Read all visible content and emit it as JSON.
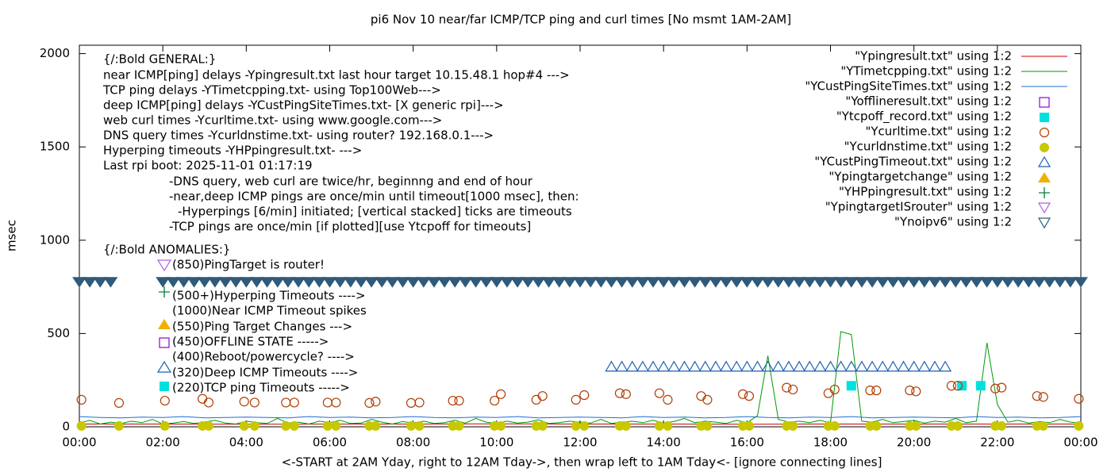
{
  "chart_data": {
    "type": "scatter",
    "title": "pi6 Nov 10  near/far ICMP/TCP ping and curl times [No msmt 1AM-2AM]",
    "x_label": "<-START at 2AM Yday, right to 12AM Tday->, then wrap left to 1AM Tday<- [ignore connecting lines]",
    "y_label": "msec",
    "xlim": [
      0,
      24
    ],
    "ylim": [
      0,
      2045
    ],
    "xticks": [
      {
        "value": 0,
        "label": "00:00"
      },
      {
        "value": 2,
        "label": "02:00"
      },
      {
        "value": 4,
        "label": "04:00"
      },
      {
        "value": 6,
        "label": "06:00"
      },
      {
        "value": 8,
        "label": "08:00"
      },
      {
        "value": 10,
        "label": "10:00"
      },
      {
        "value": 12,
        "label": "12:00"
      },
      {
        "value": 14,
        "label": "14:00"
      },
      {
        "value": 16,
        "label": "16:00"
      },
      {
        "value": 18,
        "label": "18:00"
      },
      {
        "value": 20,
        "label": "20:00"
      },
      {
        "value": 22,
        "label": "22:00"
      },
      {
        "value": 24,
        "label": "00:00"
      }
    ],
    "yticks": [
      0,
      500,
      1000,
      1500,
      2000
    ],
    "grid": false,
    "legend": "top-right",
    "annotations": [
      "{/:Bold GENERAL:}",
      "near ICMP[ping] delays -Ypingresult.txt last hour target 10.15.48.1 hop#4 --->",
      "TCP ping delays -YTimetcpping.txt- using Top100Web--->",
      "deep ICMP[ping] delays -YCustPingSiteTimes.txt- [X generic rpi]--->",
      "web curl times -Ycurltime.txt- using www.google.com--->",
      "DNS query times -Ycurldnstime.txt- using router? 192.168.0.1--->",
      "Hyperping timeouts -YHPpingresult.txt- --->",
      "Last rpi boot: 2025-11-01 01:17:19",
      "-DNS query, web curl are twice/hr, beginnng and end of hour",
      "-near,deep ICMP pings are once/min until timeout[1000 msec], then:",
      "-Hyperpings [6/min] initiated; [vertical stacked] ticks are timeouts",
      "-TCP pings are once/min [if plotted][use Ytcpoff for timeouts]",
      "{/:Bold ANOMALIES:}",
      "(850)PingTarget is router!",
      "(500+)Hyperping Timeouts ---->",
      "(1000)Near ICMP Timeout spikes",
      "(550)Ping Target Changes --->",
      "(450)OFFLINE STATE ----->",
      "(400)Reboot/powercycle? ---->",
      "(320)Deep ICMP Timeouts ---->",
      "(220)TCP ping Timeouts ----->"
    ],
    "series": [
      {
        "name": "\"Ypingresult.txt\" using 1:2",
        "color": "#cc0000",
        "marker": "line",
        "x": [
          0,
          2,
          4,
          6,
          8,
          10,
          12,
          14,
          16,
          18,
          20,
          22,
          24
        ],
        "values": [
          15,
          15,
          14,
          15,
          15,
          16,
          15,
          15,
          14,
          15,
          15,
          15,
          15
        ]
      },
      {
        "name": "\"YTimetcpping.txt\" using 1:2",
        "color": "#009900",
        "marker": "line",
        "x": [
          0,
          0.25,
          0.5,
          0.75,
          1,
          1.25,
          1.5,
          1.75,
          2,
          2.25,
          2.5,
          2.75,
          3,
          3.25,
          3.5,
          3.75,
          4,
          4.25,
          4.5,
          4.75,
          5,
          5.25,
          5.5,
          5.75,
          6,
          6.25,
          6.5,
          6.75,
          7,
          7.25,
          7.5,
          7.75,
          8,
          8.25,
          8.5,
          8.75,
          9,
          9.25,
          9.5,
          9.75,
          10,
          10.25,
          10.5,
          10.75,
          11,
          11.25,
          11.5,
          11.75,
          12,
          12.25,
          12.5,
          12.75,
          13,
          13.25,
          13.5,
          13.75,
          14,
          14.25,
          14.5,
          14.75,
          15,
          15.25,
          15.5,
          15.75,
          16,
          16.25,
          16.5,
          16.75,
          17,
          17.25,
          17.5,
          17.75,
          18,
          18.25,
          18.5,
          18.75,
          19,
          19.25,
          19.5,
          19.75,
          20,
          20.25,
          20.5,
          20.75,
          21,
          21.25,
          21.5,
          21.75,
          22,
          22.25,
          22.5,
          22.75,
          23,
          23.25,
          23.5,
          23.75,
          24
        ],
        "values": [
          20,
          35,
          15,
          25,
          18,
          30,
          22,
          40,
          15,
          20,
          28,
          18,
          25,
          35,
          20,
          15,
          30,
          22,
          18,
          45,
          20,
          25,
          15,
          30,
          22,
          35,
          18,
          20,
          40,
          25,
          15,
          28,
          20,
          30,
          18,
          22,
          35,
          20,
          45,
          25,
          18,
          30,
          20,
          25,
          38,
          18,
          22,
          30,
          25,
          20,
          40,
          18,
          25,
          30,
          22,
          35,
          20,
          28,
          45,
          22,
          30,
          25,
          18,
          35,
          22,
          60,
          380,
          40,
          25,
          30,
          22,
          35,
          20,
          510,
          495,
          30,
          25,
          40,
          22,
          28,
          35,
          20,
          30,
          25,
          45,
          22,
          30,
          450,
          120,
          25,
          35,
          20,
          28,
          22,
          40,
          25,
          20
        ]
      },
      {
        "name": "\"YCustPingSiteTimes.txt\" using 1:2",
        "color": "#1f6fd0",
        "marker": "line",
        "x": [
          0,
          0.5,
          1,
          1.5,
          2,
          2.5,
          3,
          3.5,
          4,
          4.5,
          5,
          5.5,
          6,
          6.5,
          7,
          7.5,
          8,
          8.5,
          9,
          9.5,
          10,
          10.5,
          11,
          11.5,
          12,
          12.5,
          13,
          13.5,
          14,
          14.5,
          15,
          15.5,
          16,
          16.5,
          17,
          17.5,
          18,
          18.5,
          19,
          19.5,
          20,
          20.5,
          21,
          21.5,
          22,
          22.5,
          23,
          23.5,
          24
        ],
        "values": [
          55,
          50,
          48,
          52,
          50,
          55,
          48,
          50,
          52,
          50,
          48,
          55,
          50,
          52,
          48,
          50,
          55,
          50,
          48,
          52,
          50,
          55,
          48,
          50,
          52,
          50,
          48,
          55,
          50,
          52,
          48,
          50,
          55,
          50,
          48,
          52,
          50,
          55,
          48,
          50,
          52,
          50,
          48,
          55,
          50,
          52,
          48,
          50,
          55
        ]
      },
      {
        "name": "\"Yofflineresult.txt\" using 1:2",
        "color": "#9400d3",
        "marker": "square",
        "x": [],
        "values": []
      },
      {
        "name": "\"Ytcpoff_record.txt\" using 1:2",
        "color": "#00e0e0",
        "marker": "filled-square",
        "x": [
          18.5,
          21.15,
          21.6
        ],
        "values": [
          220,
          220,
          220
        ]
      },
      {
        "name": "\"Ycurltime.txt\" using 1:2",
        "color": "#b03c00",
        "marker": "circle",
        "x": [
          0.05,
          0.95,
          2.05,
          2.95,
          3.1,
          3.95,
          4.2,
          4.95,
          5.15,
          5.95,
          6.15,
          6.95,
          7.1,
          7.95,
          8.15,
          8.95,
          9.1,
          9.95,
          10.1,
          10.95,
          11.1,
          11.9,
          12.1,
          12.95,
          13.1,
          13.9,
          14.1,
          14.9,
          15.05,
          15.9,
          16.05,
          16.95,
          17.1,
          17.95,
          18.1,
          18.95,
          19.1,
          19.9,
          20.05,
          20.9,
          21.05,
          21.95,
          22.1,
          22.95,
          23.1,
          23.95
        ],
        "values": [
          145,
          128,
          140,
          150,
          130,
          135,
          130,
          130,
          130,
          130,
          130,
          128,
          135,
          128,
          130,
          140,
          140,
          140,
          175,
          145,
          165,
          145,
          170,
          180,
          175,
          180,
          145,
          165,
          145,
          175,
          165,
          210,
          200,
          180,
          200,
          195,
          195,
          195,
          190,
          220,
          220,
          205,
          210,
          165,
          160,
          150
        ]
      },
      {
        "name": "\"Ycurldnstime.txt\" using 1:2",
        "color": "#c8c800",
        "marker": "dot",
        "x": [
          0.05,
          0.95,
          2.05,
          2.95,
          3.1,
          3.95,
          4.2,
          4.95,
          5.15,
          5.95,
          6.15,
          6.95,
          7.1,
          7.95,
          8.15,
          8.95,
          9.1,
          9.95,
          10.1,
          10.95,
          11.1,
          11.9,
          12.1,
          12.95,
          13.1,
          13.9,
          14.1,
          14.9,
          15.05,
          15.9,
          16.05,
          16.95,
          17.1,
          17.95,
          18.1,
          18.95,
          19.1,
          19.9,
          20.05,
          20.9,
          21.05,
          21.95,
          22.1,
          22.95,
          23.1,
          23.95
        ],
        "values": [
          5,
          5,
          5,
          5,
          5,
          5,
          5,
          5,
          5,
          5,
          5,
          5,
          5,
          5,
          5,
          5,
          5,
          5,
          5,
          5,
          5,
          5,
          5,
          5,
          5,
          5,
          5,
          5,
          5,
          5,
          5,
          5,
          5,
          5,
          5,
          5,
          5,
          5,
          5,
          5,
          5,
          5,
          5,
          5,
          5,
          5
        ]
      },
      {
        "name": "\"YCustPingTimeout.txt\" using 1:2",
        "color": "#1f5fb0",
        "marker": "triangle",
        "x": [
          12.75,
          13,
          13.25,
          13.5,
          13.75,
          14,
          14.25,
          14.5,
          14.75,
          15,
          15.25,
          15.5,
          15.75,
          16,
          16.25,
          16.5,
          16.75,
          17,
          17.25,
          17.5,
          17.75,
          18,
          18.25,
          18.5,
          18.75,
          19,
          19.25,
          19.5,
          19.75,
          20,
          20.25,
          20.5,
          20.75
        ],
        "values": [
          320,
          320,
          320,
          320,
          320,
          320,
          320,
          320,
          320,
          320,
          320,
          320,
          320,
          320,
          320,
          320,
          320,
          320,
          320,
          320,
          320,
          320,
          320,
          320,
          320,
          320,
          320,
          320,
          320,
          320,
          320,
          320,
          320
        ]
      },
      {
        "name": "\"Ypingtargetchange\" using 1:2",
        "color": "#f0b000",
        "marker": "filled-triangle",
        "x": [],
        "values": []
      },
      {
        "name": "\"YHPpingresult.txt\" using 1:2",
        "color": "#008040",
        "marker": "plus",
        "x": [],
        "values": []
      },
      {
        "name": "\"YpingtargetISrouter\" using 1:2",
        "color": "#b060e0",
        "marker": "down-triangle",
        "x": [],
        "values": []
      },
      {
        "name": "\"Ynoipv6\" using 1:2",
        "color": "#2f5a7a",
        "marker": "down-triangle",
        "x": [
          0,
          0.25,
          0.5,
          0.75,
          2,
          2.25,
          2.5,
          2.75,
          3,
          3.25,
          3.5,
          3.75,
          4,
          4.25,
          4.5,
          4.75,
          5,
          5.25,
          5.5,
          5.75,
          6,
          6.25,
          6.5,
          6.75,
          7,
          7.25,
          7.5,
          7.75,
          8,
          8.25,
          8.5,
          8.75,
          9,
          9.25,
          9.5,
          9.75,
          10,
          10.25,
          10.5,
          10.75,
          11,
          11.25,
          11.5,
          11.75,
          12,
          12.25,
          12.5,
          12.75,
          13,
          13.25,
          13.5,
          13.75,
          14,
          14.25,
          14.5,
          14.75,
          15,
          15.25,
          15.5,
          15.75,
          16,
          16.25,
          16.5,
          16.75,
          17,
          17.25,
          17.5,
          17.75,
          18,
          18.25,
          18.5,
          18.75,
          19,
          19.25,
          19.5,
          19.75,
          20,
          20.25,
          20.5,
          20.75,
          21,
          21.25,
          21.5,
          21.75,
          22,
          22.25,
          22.5,
          22.75,
          23,
          23.25,
          23.5,
          23.75,
          24
        ],
        "values": [
          775,
          775,
          775,
          775,
          775,
          775,
          775,
          775,
          775,
          775,
          775,
          775,
          775,
          775,
          775,
          775,
          775,
          775,
          775,
          775,
          775,
          775,
          775,
          775,
          775,
          775,
          775,
          775,
          775,
          775,
          775,
          775,
          775,
          775,
          775,
          775,
          775,
          775,
          775,
          775,
          775,
          775,
          775,
          775,
          775,
          775,
          775,
          775,
          775,
          775,
          775,
          775,
          775,
          775,
          775,
          775,
          775,
          775,
          775,
          775,
          775,
          775,
          775,
          775,
          775,
          775,
          775,
          775,
          775,
          775,
          775,
          775,
          775,
          775,
          775,
          775,
          775,
          775,
          775,
          775,
          775,
          775,
          775,
          775,
          775,
          775,
          775,
          775,
          775,
          775,
          775,
          775,
          775
        ]
      }
    ]
  }
}
